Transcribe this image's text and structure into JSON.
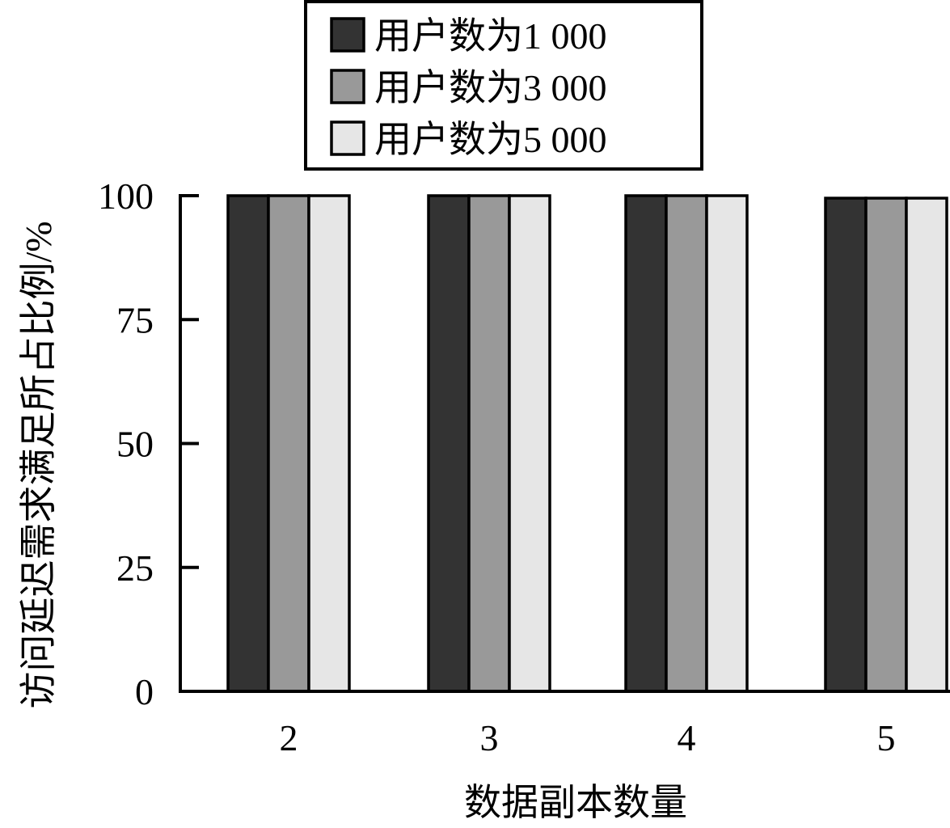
{
  "chart_data": {
    "type": "bar",
    "categories": [
      "2",
      "3",
      "4",
      "5"
    ],
    "series": [
      {
        "name": "用户数为1 000",
        "color": "#333333",
        "values": [
          100,
          100,
          100,
          99.5
        ]
      },
      {
        "name": "用户数为3 000",
        "color": "#999999",
        "values": [
          100,
          100,
          100,
          99.5
        ]
      },
      {
        "name": "用户数为5 000",
        "color": "#e6e6e6",
        "values": [
          100,
          100,
          100,
          99.5
        ]
      }
    ],
    "xlabel": "数据副本数量",
    "ylabel": "访问延迟需求满足所占比例/%",
    "ylim": [
      0,
      100
    ],
    "yticks": [
      "0",
      "25",
      "50",
      "75",
      "100"
    ],
    "grid": false,
    "legend_position": "top-center"
  }
}
